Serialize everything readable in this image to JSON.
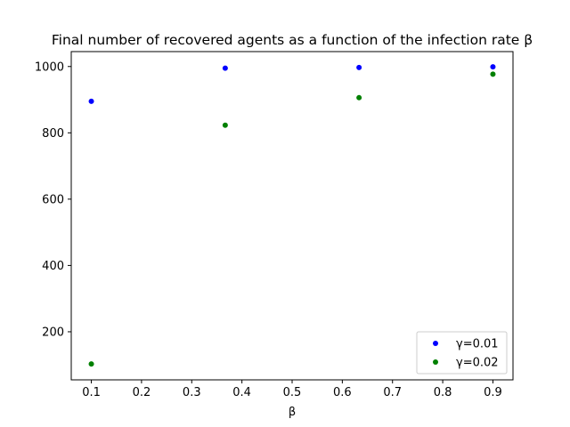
{
  "chart_data": {
    "type": "scatter",
    "title": "Final number of recovered agents as a function of the infection rate β",
    "xlabel": "β",
    "ylabel": "",
    "xlim": [
      0.06,
      0.94
    ],
    "ylim": [
      55,
      1045
    ],
    "xticks": [
      0.1,
      0.2,
      0.3,
      0.4,
      0.5,
      0.6,
      0.7,
      0.8,
      0.9
    ],
    "xtick_labels": [
      "0.1",
      "0.2",
      "0.3",
      "0.4",
      "0.5",
      "0.6",
      "0.7",
      "0.8",
      "0.9"
    ],
    "yticks": [
      200,
      400,
      600,
      800,
      1000
    ],
    "ytick_labels": [
      "200",
      "400",
      "600",
      "800",
      "1000"
    ],
    "grid": false,
    "legend_position": "bottom-right",
    "series": [
      {
        "name": "γ=0.01",
        "color": "#0000ff",
        "x": [
          0.1,
          0.3667,
          0.6333,
          0.9
        ],
        "y": [
          895,
          995,
          997,
          999
        ]
      },
      {
        "name": "γ=0.02",
        "color": "#008000",
        "x": [
          0.1,
          0.3667,
          0.6333,
          0.9
        ],
        "y": [
          103,
          823,
          906,
          977
        ]
      }
    ]
  }
}
